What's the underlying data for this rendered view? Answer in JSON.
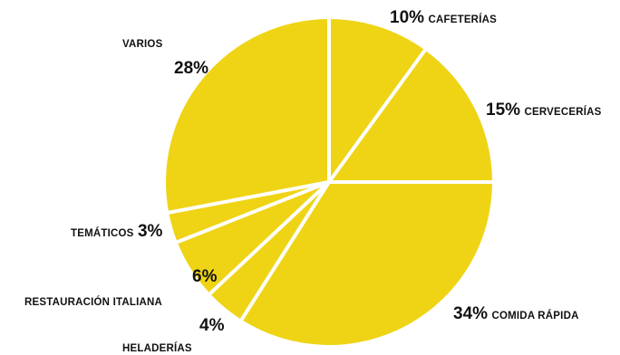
{
  "chart_data": {
    "type": "pie",
    "color": "#efd416",
    "separator_color": "#ffffff",
    "start_angle_deg": 0,
    "direction": "clockwise",
    "slices": [
      {
        "label": "CAFETERÍAS",
        "value": 10,
        "pct_text": "10%"
      },
      {
        "label": "CERVECERÍAS",
        "value": 15,
        "pct_text": "15%"
      },
      {
        "label": "COMIDA RÁPIDA",
        "value": 34,
        "pct_text": "34%"
      },
      {
        "label": "HELADERÍAS",
        "value": 4,
        "pct_text": "4%"
      },
      {
        "label": "RESTAURACIÓN ITALIANA",
        "value": 6,
        "pct_text": "6%"
      },
      {
        "label": "TEMÁTICOS",
        "value": 3,
        "pct_text": "3%"
      },
      {
        "label": "VARIOS",
        "value": 28,
        "pct_text": "28%"
      }
    ]
  }
}
